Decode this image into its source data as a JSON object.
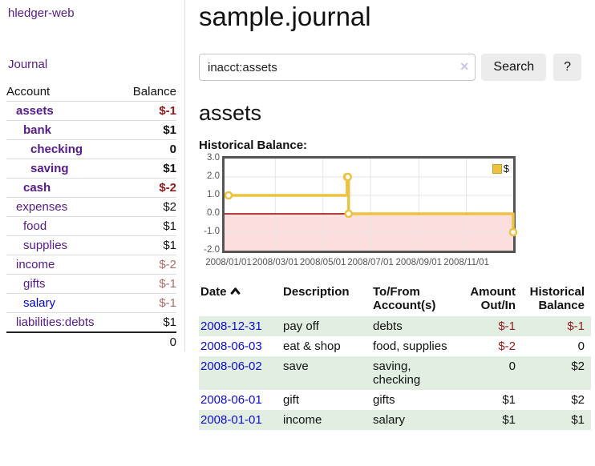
{
  "sidebar": {
    "app_title": "hledger-web",
    "journal_label": "Journal",
    "accounts": {
      "headers": {
        "account": "Account",
        "balance": "Balance"
      },
      "rows": [
        {
          "name": "assets",
          "balance": "$-1"
        },
        {
          "name": "bank",
          "balance": "$1"
        },
        {
          "name": "checking",
          "balance": "0"
        },
        {
          "name": "saving",
          "balance": "$1"
        },
        {
          "name": "cash",
          "balance": "$-2"
        },
        {
          "name": "expenses",
          "balance": "$2"
        },
        {
          "name": "food",
          "balance": "$1"
        },
        {
          "name": "supplies",
          "balance": "$1"
        },
        {
          "name": "income",
          "balance": "$-2"
        },
        {
          "name": "gifts",
          "balance": "$-1"
        },
        {
          "name": "salary",
          "balance": "$-1"
        },
        {
          "name": "liabilities:debts",
          "balance": "$1"
        }
      ],
      "total": "0"
    }
  },
  "main": {
    "title": "sample.journal",
    "search": {
      "value": "inacct:assets",
      "clear_icon": "×",
      "button_label": "Search",
      "help_label": "?"
    },
    "account_heading": "assets",
    "chart_label": "Historical Balance:"
  },
  "chart_data": {
    "type": "line",
    "title": "Historical Balance",
    "step": true,
    "series": [
      {
        "name": "$",
        "color": "#edc240",
        "points": [
          [
            "2008-01-01",
            1
          ],
          [
            "2008-06-01",
            2
          ],
          [
            "2008-06-02",
            2
          ],
          [
            "2008-06-03",
            0
          ],
          [
            "2008-12-31",
            -1
          ]
        ]
      }
    ],
    "ylim": [
      -2,
      3
    ],
    "y_ticks": [
      {
        "label": "3.0",
        "v": 3
      },
      {
        "label": "2.0",
        "v": 2
      },
      {
        "label": "1.0",
        "v": 1
      },
      {
        "label": "0.0",
        "v": 0
      },
      {
        "label": "-1.0",
        "v": -1
      },
      {
        "label": "-2.0",
        "v": -2
      }
    ],
    "x_ticks": [
      {
        "label": "2008/01/01",
        "day": 0
      },
      {
        "label": "2008/03/01",
        "day": 60
      },
      {
        "label": "2008/05/01",
        "day": 121
      },
      {
        "label": "2008/07/01",
        "day": 182
      },
      {
        "label": "2008/09/01",
        "day": 244
      },
      {
        "label": "2008/11/01",
        "day": 305
      }
    ],
    "grid_color": "#e6e6e6",
    "border_color": "#545454",
    "negative_region_color": "#fcdede",
    "zero_line_color": "#990000",
    "legend_position": "top-right",
    "legend": "$"
  },
  "register": {
    "headers": {
      "date": "Date",
      "description": "Description",
      "accounts": "To/From Account(s)",
      "amount": "Amount Out/In",
      "balance": "Historical Balance"
    },
    "rows": [
      {
        "date": "2008-12-31",
        "description": "pay off",
        "accounts": "debts",
        "amount": "$-1",
        "balance": "$-1"
      },
      {
        "date": "2008-06-03",
        "description": "eat & shop",
        "accounts": "food, supplies",
        "amount": "$-2",
        "balance": "0"
      },
      {
        "date": "2008-06-02",
        "description": "save",
        "accounts": "saving, checking",
        "amount": "0",
        "balance": "$2"
      },
      {
        "date": "2008-06-01",
        "description": "gift",
        "accounts": "gifts",
        "amount": "$1",
        "balance": "$2"
      },
      {
        "date": "2008-01-01",
        "description": "income",
        "accounts": "salary",
        "amount": "$1",
        "balance": "$1"
      }
    ]
  }
}
